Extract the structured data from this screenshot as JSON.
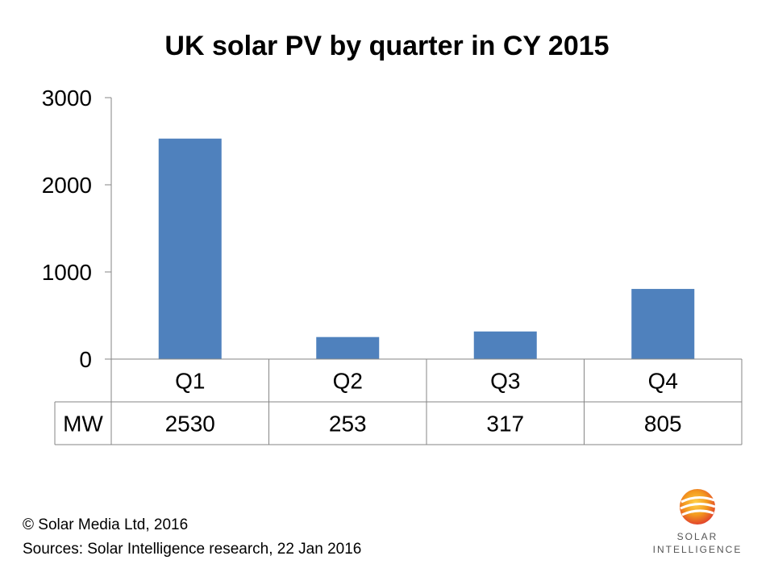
{
  "chart_data": {
    "type": "bar",
    "title": "UK solar PV by quarter in CY 2015",
    "categories": [
      "Q1",
      "Q2",
      "Q3",
      "Q4"
    ],
    "series": [
      {
        "name": "MW",
        "values": [
          2530,
          253,
          317,
          805
        ]
      }
    ],
    "ylim": [
      0,
      3000
    ],
    "yticks": [
      0,
      1000,
      2000,
      3000
    ],
    "xlabel": "",
    "ylabel": "",
    "grid": false,
    "data_table": true
  },
  "colors": {
    "bar": "#4F81BD",
    "axis": "#868686"
  },
  "footer": {
    "copyright": "© Solar Media Ltd, 2016",
    "sources": "Sources: Solar Intelligence research, 22 Jan 2016"
  },
  "logo": {
    "line1": "SOLAR",
    "line2": "INTELLIGENCE"
  }
}
